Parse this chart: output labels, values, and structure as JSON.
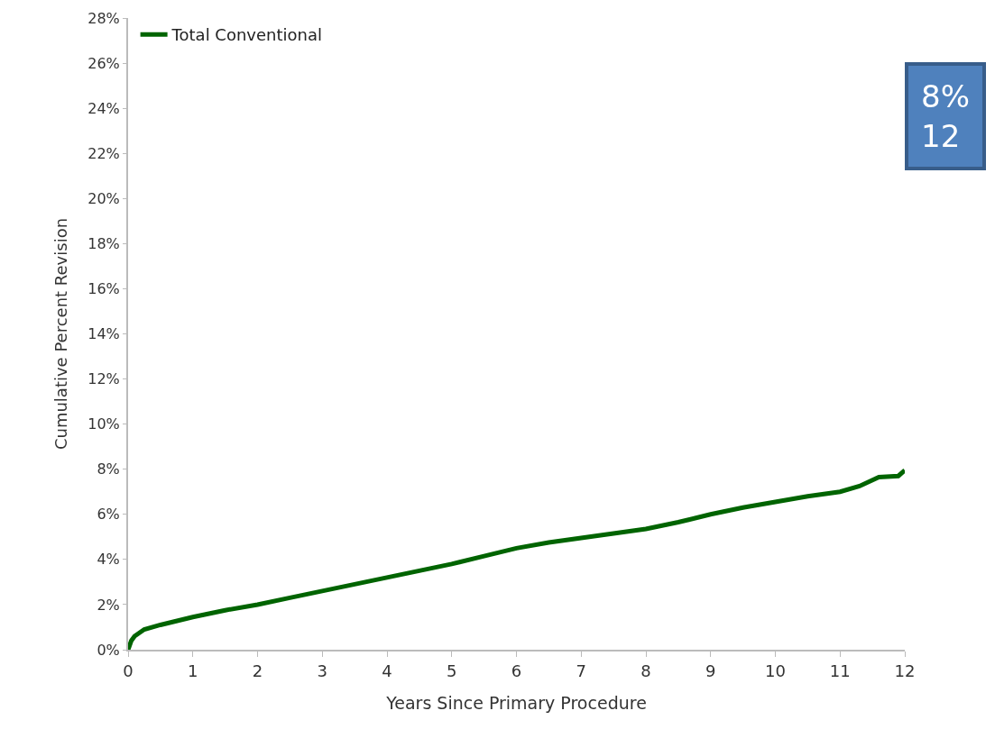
{
  "chart_data": {
    "type": "line",
    "xlabel": "Years Since Primary Procedure",
    "ylabel": "Cumulative Percent Revision",
    "x": [
      0,
      0.05,
      0.1,
      0.25,
      0.5,
      1,
      1.5,
      2,
      2.5,
      3,
      3.5,
      4,
      4.5,
      5,
      5.5,
      6,
      6.5,
      7,
      7.5,
      8,
      8.5,
      9,
      9.5,
      10,
      10.5,
      11,
      11.3,
      11.6,
      11.9,
      12
    ],
    "series": [
      {
        "name": "Total Conventional",
        "color": "#006400",
        "values": [
          0,
          0.4,
          0.6,
          0.9,
          1.1,
          1.45,
          1.75,
          2.0,
          2.3,
          2.6,
          2.9,
          3.2,
          3.5,
          3.8,
          4.15,
          4.5,
          4.75,
          4.95,
          5.15,
          5.35,
          5.65,
          6.0,
          6.3,
          6.55,
          6.8,
          7.0,
          7.25,
          7.65,
          7.7,
          7.95
        ]
      }
    ],
    "xlim": [
      0,
      12
    ],
    "xticks": [
      0,
      1,
      2,
      3,
      4,
      5,
      6,
      7,
      8,
      9,
      10,
      11,
      12
    ],
    "ylim": [
      0,
      28
    ],
    "yticks": [
      {
        "value": 0,
        "label": "0%"
      },
      {
        "value": 2,
        "label": "2%"
      },
      {
        "value": 4,
        "label": "4%"
      },
      {
        "value": 6,
        "label": "6%"
      },
      {
        "value": 8,
        "label": "8%"
      },
      {
        "value": 10,
        "label": "10%"
      },
      {
        "value": 12,
        "label": "12%"
      },
      {
        "value": 14,
        "label": "14%"
      },
      {
        "value": 16,
        "label": "16%"
      },
      {
        "value": 18,
        "label": "18%"
      },
      {
        "value": 20,
        "label": "20%"
      },
      {
        "value": 22,
        "label": "22%"
      },
      {
        "value": 24,
        "label": "24%"
      },
      {
        "value": 26,
        "label": "26%"
      },
      {
        "value": 28,
        "label": "28%"
      }
    ],
    "grid": false,
    "legend": "top left",
    "marker": "none",
    "line_style": "solid",
    "annotations": [
      "8%\n12"
    ]
  }
}
